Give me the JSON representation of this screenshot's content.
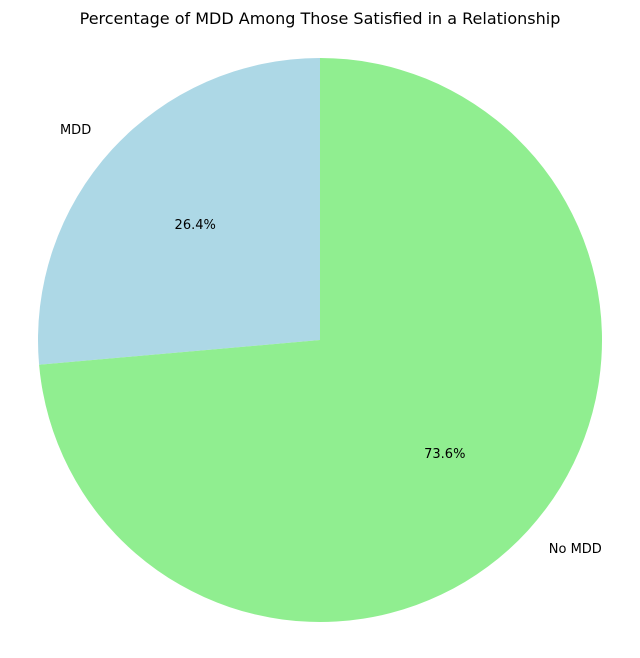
{
  "chart_data": {
    "type": "pie",
    "title": "Percentage of MDD Among Those Satisfied in a Relationship",
    "categories": [
      "MDD",
      "No MDD"
    ],
    "values": [
      26.4,
      73.6
    ],
    "value_labels": [
      "26.4%",
      "73.6%"
    ],
    "colors": [
      "#add8e6",
      "#90ee90"
    ],
    "start_angle_deg": 90,
    "direction": "counterclockwise"
  }
}
